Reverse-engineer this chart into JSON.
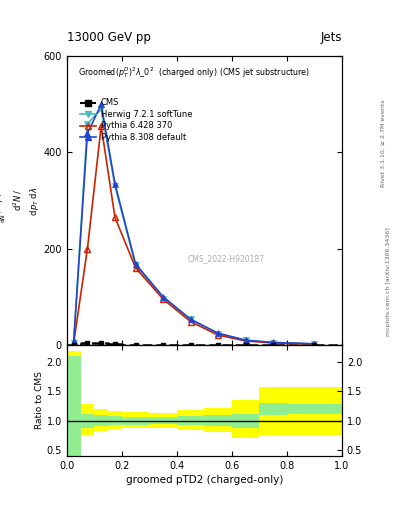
{
  "title_top": "13000 GeV pp",
  "title_top_right": "Jets",
  "plot_title": "Groomed$(p_T^D)^2\\lambda\\_0^2$  (charged only) (CMS jet substructure)",
  "xlabel": "groomed pTD2 (charged-only)",
  "watermark": "CMS_2022-H920187",
  "x_bins": [
    0.0,
    0.05,
    0.1,
    0.15,
    0.2,
    0.3,
    0.4,
    0.5,
    0.6,
    0.7,
    0.8,
    1.0
  ],
  "cms_data": [
    0.0,
    3.0,
    4.0,
    1.0,
    0.5,
    0.2,
    0.1,
    0.05,
    0.02,
    0.01,
    0.005
  ],
  "herwig_data": [
    3.0,
    460.0,
    490.0,
    330.0,
    165.0,
    95.0,
    53.0,
    23.0,
    9.0,
    4.5,
    1.8
  ],
  "pythia6_data": [
    4.0,
    200.0,
    455.0,
    265.0,
    160.0,
    95.0,
    48.0,
    20.0,
    8.0,
    3.5,
    1.2
  ],
  "pythia8_data": [
    8.0,
    440.0,
    500.0,
    335.0,
    168.0,
    100.0,
    53.0,
    24.0,
    9.5,
    4.8,
    1.9
  ],
  "herwig_color": "#4DBBBB",
  "pythia6_color": "#CC2200",
  "pythia8_color": "#2244CC",
  "cms_color": "#000000",
  "ylim_main": [
    0,
    600
  ],
  "yticks_main": [
    0,
    200,
    400,
    600
  ],
  "ylim_ratio": [
    0.4,
    2.3
  ],
  "yticks_ratio": [
    0.5,
    1.0,
    1.5,
    2.0
  ],
  "green_band_edges": [
    0.0,
    0.05,
    0.1,
    0.15,
    0.2,
    0.3,
    0.4,
    0.5,
    0.6,
    0.7,
    0.8,
    1.0
  ],
  "green_band_lo": [
    0.3,
    0.88,
    0.9,
    0.92,
    0.93,
    0.94,
    0.92,
    0.9,
    0.88,
    1.1,
    1.12
  ],
  "green_band_hi": [
    2.1,
    1.12,
    1.1,
    1.08,
    1.07,
    1.06,
    1.08,
    1.1,
    1.12,
    1.3,
    1.28
  ],
  "yellow_band_lo": [
    0.15,
    0.75,
    0.82,
    0.86,
    0.87,
    0.88,
    0.84,
    0.8,
    0.7,
    0.75,
    0.75
  ],
  "yellow_band_hi": [
    2.2,
    1.28,
    1.2,
    1.16,
    1.14,
    1.13,
    1.18,
    1.22,
    1.35,
    1.58,
    1.58
  ]
}
